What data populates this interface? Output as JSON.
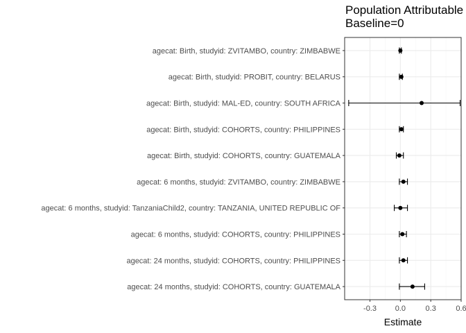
{
  "chart_data": {
    "type": "forest",
    "title": [
      "Population Attributable",
      "Baseline=0"
    ],
    "xlabel": "Estimate",
    "ylabel": "",
    "xlim": [
      -0.55,
      0.6
    ],
    "xticks": [
      -0.3,
      0.0,
      0.3,
      0.6
    ],
    "xtick_labels": [
      "-0.3",
      "0.0",
      "0.3",
      "0.6"
    ],
    "grid": true,
    "categories": [
      "agecat: Birth, studyid: ZVITAMBO, country: ZIMBABWE",
      "agecat: Birth, studyid: PROBIT, country: BELARUS",
      "agecat: Birth, studyid: MAL-ED, country: SOUTH AFRICA",
      "agecat: Birth, studyid: COHORTS, country: PHILIPPINES",
      "agecat: Birth, studyid: COHORTS, country: GUATEMALA",
      "agecat: 6 months, studyid: ZVITAMBO, country: ZIMBABWE",
      "agecat: 6 months, studyid: TanzaniaChild2, country: TANZANIA, UNITED REPUBLIC OF",
      "agecat: 6 months, studyid: COHORTS, country: PHILIPPINES",
      "agecat: 24 months, studyid: COHORTS, country: PHILIPPINES",
      "agecat: 24 months, studyid: COHORTS, country: GUATEMALA"
    ],
    "estimates": [
      0.0,
      0.01,
      0.21,
      0.01,
      -0.01,
      0.03,
      0.0,
      0.02,
      0.03,
      0.12
    ],
    "ci_lower": [
      -0.01,
      -0.01,
      -0.51,
      -0.01,
      -0.04,
      -0.01,
      -0.06,
      -0.01,
      -0.01,
      -0.01
    ],
    "ci_upper": [
      0.01,
      0.02,
      0.59,
      0.03,
      0.03,
      0.07,
      0.07,
      0.06,
      0.07,
      0.24
    ],
    "colors": {
      "panel_border": "#333333",
      "grid_major": "#ebebeb",
      "grid_minor": "#f5f5f5",
      "marks": "#000000"
    }
  }
}
